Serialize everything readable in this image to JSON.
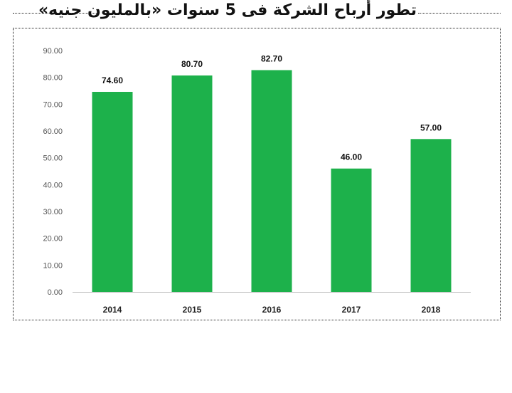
{
  "title": "تطور أرباح الشركة فى 5 سنوات «بالمليون جنيه»",
  "colors": {
    "bar": "#1db14b",
    "axis": "#bfbfbf"
  },
  "chart_data": {
    "type": "bar",
    "categories": [
      "2014",
      "2015",
      "2016",
      "2017",
      "2018"
    ],
    "values": [
      74.6,
      80.7,
      82.7,
      46.0,
      57.0
    ],
    "value_labels": [
      "74.60",
      "80.70",
      "82.70",
      "46.00",
      "57.00"
    ],
    "yticks": [
      "0.00",
      "10.00",
      "20.00",
      "30.00",
      "40.00",
      "50.00",
      "60.00",
      "70.00",
      "80.00",
      "90.00"
    ],
    "ylim": [
      0,
      90
    ],
    "grid": false,
    "legend": "none"
  }
}
